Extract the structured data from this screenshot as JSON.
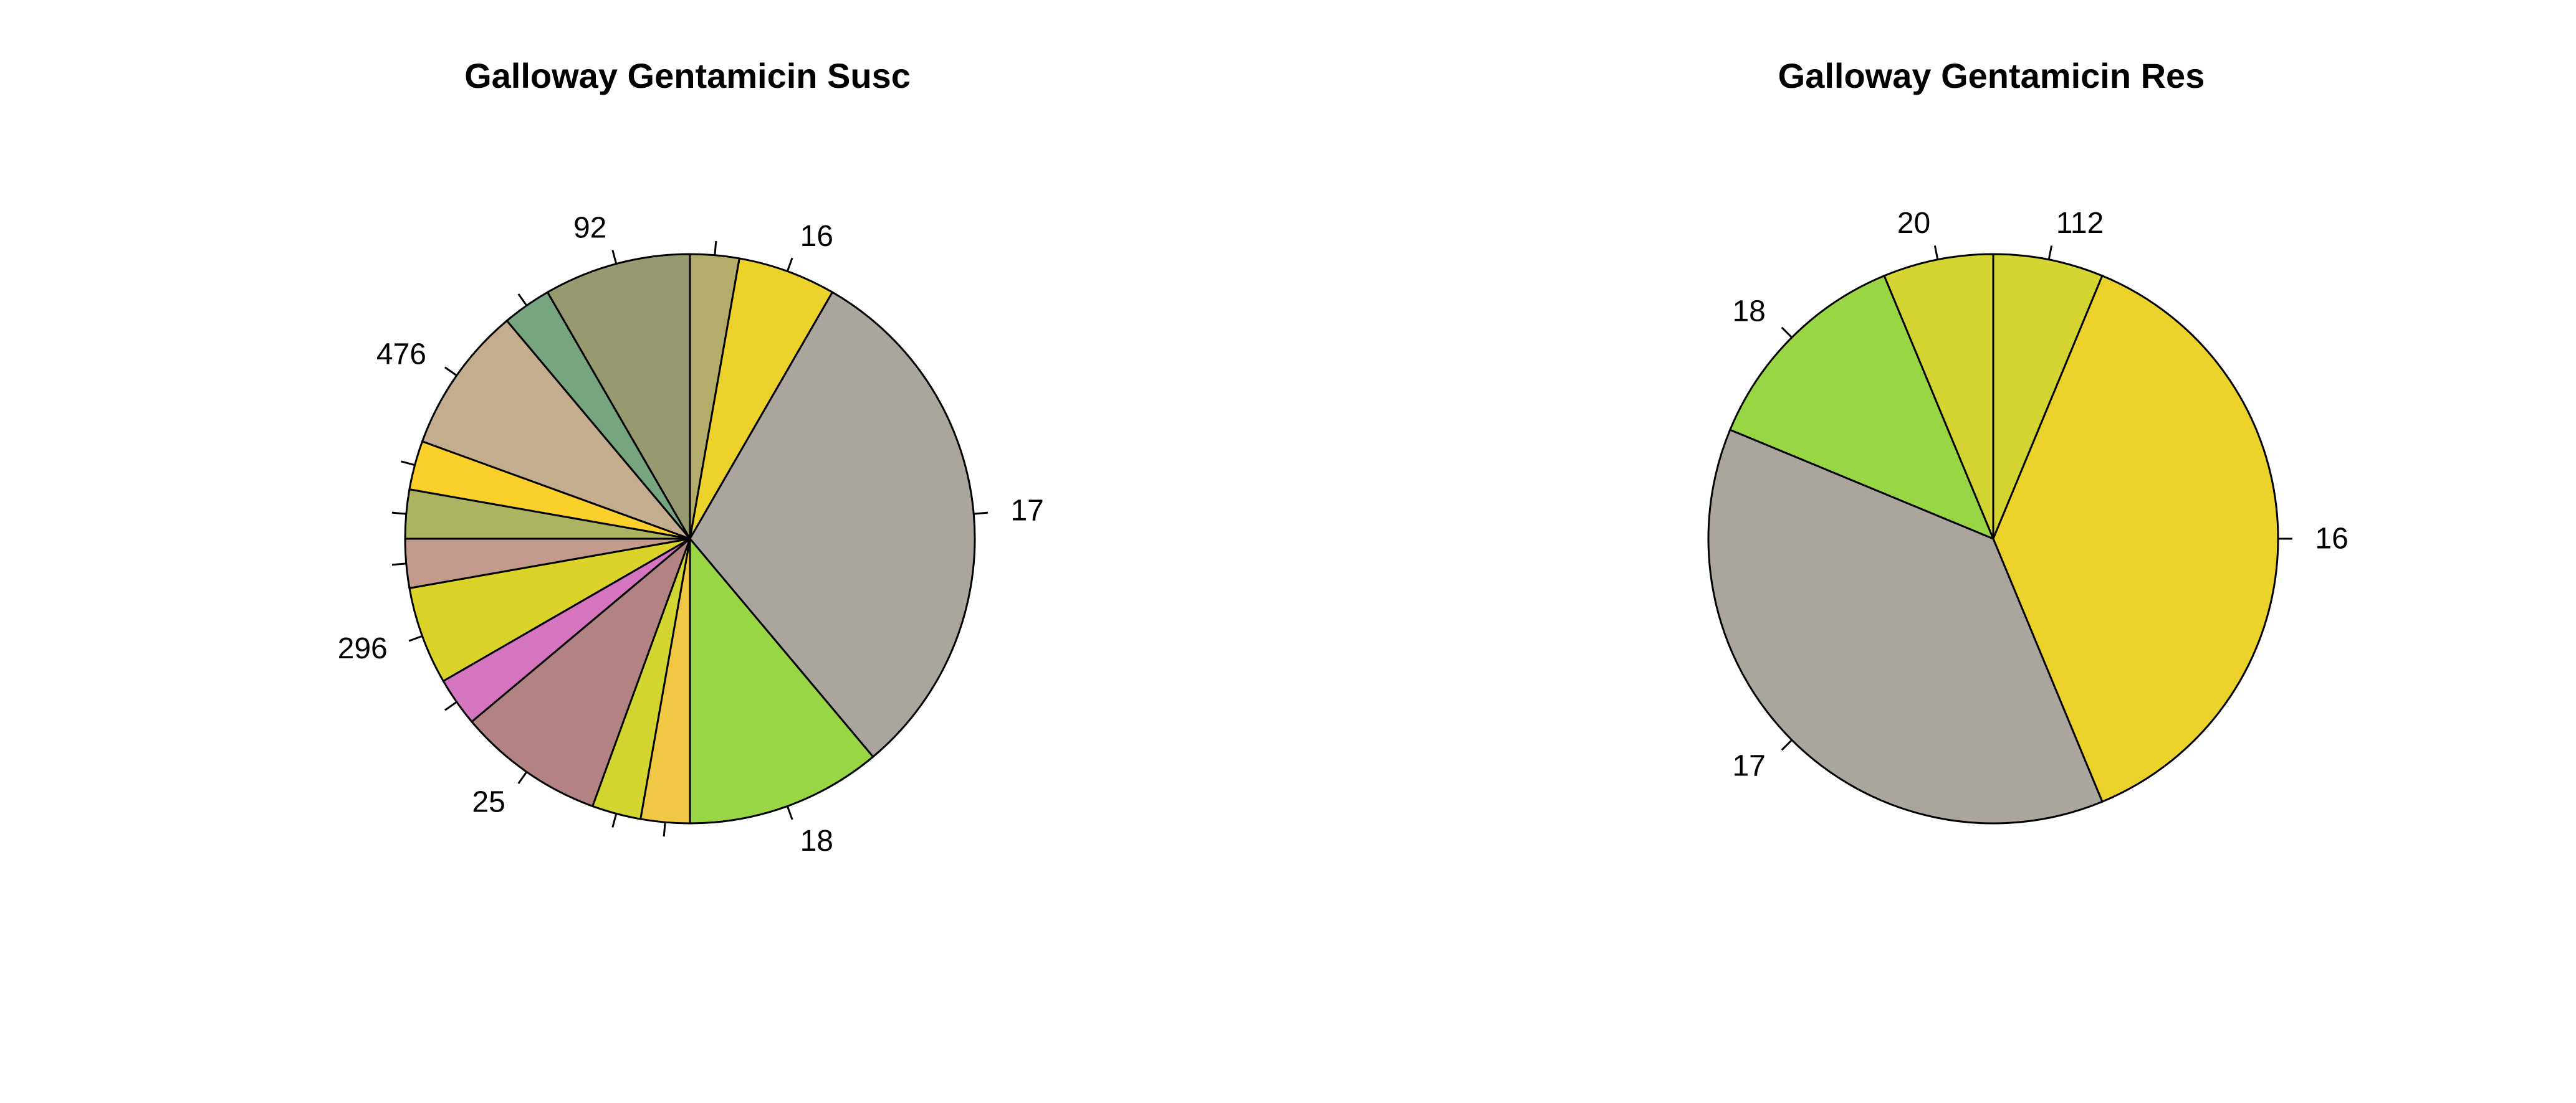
{
  "chart_data": [
    {
      "type": "pie",
      "title": "Galloway Gentamicin Susc",
      "start_angle_deg": 90,
      "direction": "clockwise",
      "slices": [
        {
          "label": "",
          "value": 1,
          "color": "#b3ad6b"
        },
        {
          "label": "16",
          "value": 2,
          "color": "#ebd32b"
        },
        {
          "label": "17",
          "value": 11,
          "color": "#aaa69d"
        },
        {
          "label": "18",
          "value": 4,
          "color": "#98d645"
        },
        {
          "label": "",
          "value": 1,
          "color": "#f0c843"
        },
        {
          "label": "",
          "value": 1,
          "color": "#d3d531"
        },
        {
          "label": "25",
          "value": 3,
          "color": "#b38383"
        },
        {
          "label": "",
          "value": 1,
          "color": "#d675bf"
        },
        {
          "label": "296",
          "value": 2,
          "color": "#dbd32a"
        },
        {
          "label": "",
          "value": 1,
          "color": "#c49a8c"
        },
        {
          "label": "",
          "value": 1,
          "color": "#acb462"
        },
        {
          "label": "",
          "value": 1,
          "color": "#fcd02a"
        },
        {
          "label": "476",
          "value": 3,
          "color": "#c5ae90"
        },
        {
          "label": "",
          "value": 1,
          "color": "#77a580"
        },
        {
          "label": "92",
          "value": 3,
          "color": "#979a71"
        }
      ]
    },
    {
      "type": "pie",
      "title": "Galloway Gentamicin Res",
      "start_angle_deg": 90,
      "direction": "clockwise",
      "slices": [
        {
          "label": "112",
          "value": 1,
          "color": "#d4d532"
        },
        {
          "label": "16",
          "value": 6,
          "color": "#ebd32b"
        },
        {
          "label": "17",
          "value": 6,
          "color": "#aaa69d"
        },
        {
          "label": "18",
          "value": 2,
          "color": "#98d645"
        },
        {
          "label": "20",
          "value": 1,
          "color": "#d4d532"
        }
      ]
    }
  ]
}
